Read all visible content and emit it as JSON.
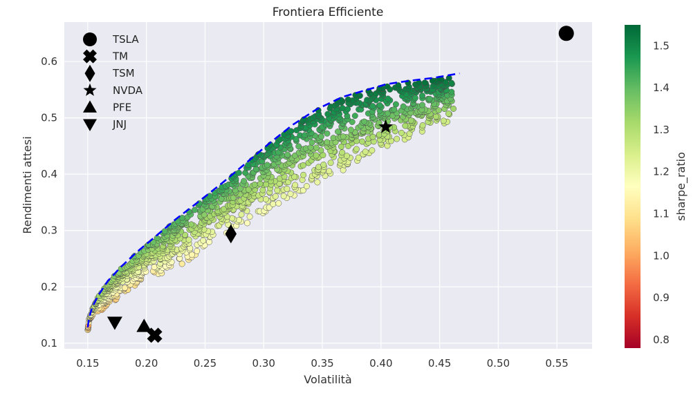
{
  "chart_data": {
    "type": "scatter",
    "title": "Frontiera Efficiente",
    "xlabel": "Volatilità",
    "ylabel": "Rendimenti attesi",
    "colorbar_label": "sharpe_ratio",
    "xlim": [
      0.13,
      0.58
    ],
    "ylim": [
      0.09,
      0.67
    ],
    "x_ticks": [
      "0.15",
      "0.20",
      "0.25",
      "0.30",
      "0.35",
      "0.40",
      "0.45",
      "0.50",
      "0.55"
    ],
    "y_ticks": [
      "0.1",
      "0.2",
      "0.3",
      "0.4",
      "0.5",
      "0.6"
    ],
    "colorbar_range": [
      0.78,
      1.55
    ],
    "colorbar_ticks": [
      "0.8",
      "0.9",
      "1.0",
      "1.1",
      "1.2",
      "1.3",
      "1.4",
      "1.5"
    ],
    "colormap": "RdYlGn",
    "grid": true,
    "legend_position": "top-left",
    "background_color": "#eaeaf2",
    "frontier_color": "#0000ff",
    "portfolio_cloud": {
      "description_of_shape": "random portfolios",
      "min_volatility": 0.15,
      "max_volatility": 0.467,
      "min_return": 0.125,
      "max_return": 0.577
    },
    "efficient_frontier": {
      "style": "dashed",
      "points": [
        {
          "x": 0.15,
          "y": 0.128
        },
        {
          "x": 0.151,
          "y": 0.145
        },
        {
          "x": 0.154,
          "y": 0.165
        },
        {
          "x": 0.159,
          "y": 0.185
        },
        {
          "x": 0.167,
          "y": 0.21
        },
        {
          "x": 0.178,
          "y": 0.235
        },
        {
          "x": 0.192,
          "y": 0.262
        },
        {
          "x": 0.208,
          "y": 0.29
        },
        {
          "x": 0.225,
          "y": 0.32
        },
        {
          "x": 0.245,
          "y": 0.352
        },
        {
          "x": 0.265,
          "y": 0.385
        },
        {
          "x": 0.285,
          "y": 0.42
        },
        {
          "x": 0.305,
          "y": 0.455
        },
        {
          "x": 0.325,
          "y": 0.488
        },
        {
          "x": 0.345,
          "y": 0.515
        },
        {
          "x": 0.367,
          "y": 0.537
        },
        {
          "x": 0.385,
          "y": 0.548
        },
        {
          "x": 0.405,
          "y": 0.56
        },
        {
          "x": 0.425,
          "y": 0.566
        },
        {
          "x": 0.445,
          "y": 0.571
        },
        {
          "x": 0.467,
          "y": 0.579
        }
      ]
    },
    "assets": [
      {
        "name": "TSLA",
        "marker": "circle",
        "x": 0.558,
        "y": 0.65
      },
      {
        "name": "TM",
        "marker": "x",
        "x": 0.207,
        "y": 0.114
      },
      {
        "name": "TSM",
        "marker": "diamond",
        "x": 0.272,
        "y": 0.294
      },
      {
        "name": "NVDA",
        "marker": "star",
        "x": 0.404,
        "y": 0.484
      },
      {
        "name": "PFE",
        "marker": "triangle-up",
        "x": 0.198,
        "y": 0.13
      },
      {
        "name": "JNJ",
        "marker": "triangle-down",
        "x": 0.173,
        "y": 0.137
      }
    ]
  }
}
